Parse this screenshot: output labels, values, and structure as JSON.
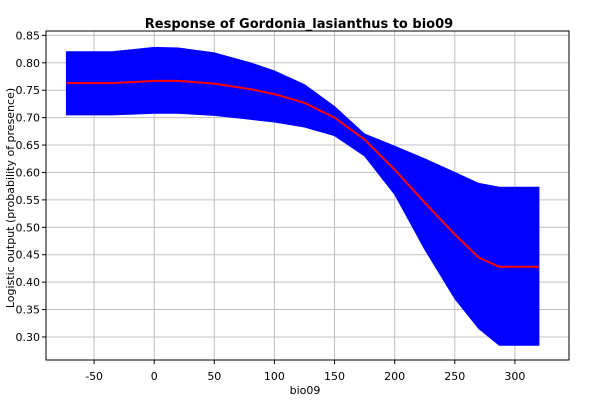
{
  "chart_data": {
    "type": "line",
    "title": "Response of Gordonia_lasianthus to bio09",
    "xlabel": "bio09",
    "ylabel": "Logistic output (probability of presence)",
    "xlim": [
      -90,
      345
    ],
    "ylim": [
      0.258,
      0.858
    ],
    "x_ticks": [
      -50,
      0,
      50,
      100,
      150,
      200,
      250,
      300
    ],
    "y_ticks": [
      0.3,
      0.35,
      0.4,
      0.45,
      0.5,
      0.55,
      0.6,
      0.65,
      0.7,
      0.75,
      0.8,
      0.85
    ],
    "grid": true,
    "colors": {
      "mean": "#ff0000",
      "band": "#0000ff",
      "grid": "#c0c0c0",
      "axes": "#000000"
    },
    "series": [
      {
        "role": "mean",
        "x": [
          -73,
          -35,
          0,
          20,
          50,
          80,
          100,
          125,
          150,
          175,
          200,
          225,
          250,
          270,
          287,
          320
        ],
        "y": [
          0.763,
          0.763,
          0.767,
          0.767,
          0.762,
          0.752,
          0.743,
          0.727,
          0.7,
          0.66,
          0.605,
          0.545,
          0.487,
          0.445,
          0.428,
          0.428
        ]
      },
      {
        "role": "upper",
        "x": [
          -73,
          -35,
          0,
          20,
          50,
          80,
          100,
          125,
          150,
          175,
          200,
          225,
          250,
          270,
          287,
          320
        ],
        "y": [
          0.82,
          0.82,
          0.828,
          0.827,
          0.818,
          0.8,
          0.785,
          0.76,
          0.72,
          0.67,
          0.648,
          0.625,
          0.6,
          0.58,
          0.573,
          0.573
        ]
      },
      {
        "role": "lower",
        "x": [
          -73,
          -35,
          0,
          20,
          50,
          80,
          100,
          125,
          150,
          175,
          200,
          225,
          250,
          270,
          287,
          320
        ],
        "y": [
          0.705,
          0.705,
          0.708,
          0.708,
          0.704,
          0.697,
          0.692,
          0.683,
          0.667,
          0.63,
          0.56,
          0.46,
          0.37,
          0.315,
          0.285,
          0.285
        ]
      }
    ]
  }
}
